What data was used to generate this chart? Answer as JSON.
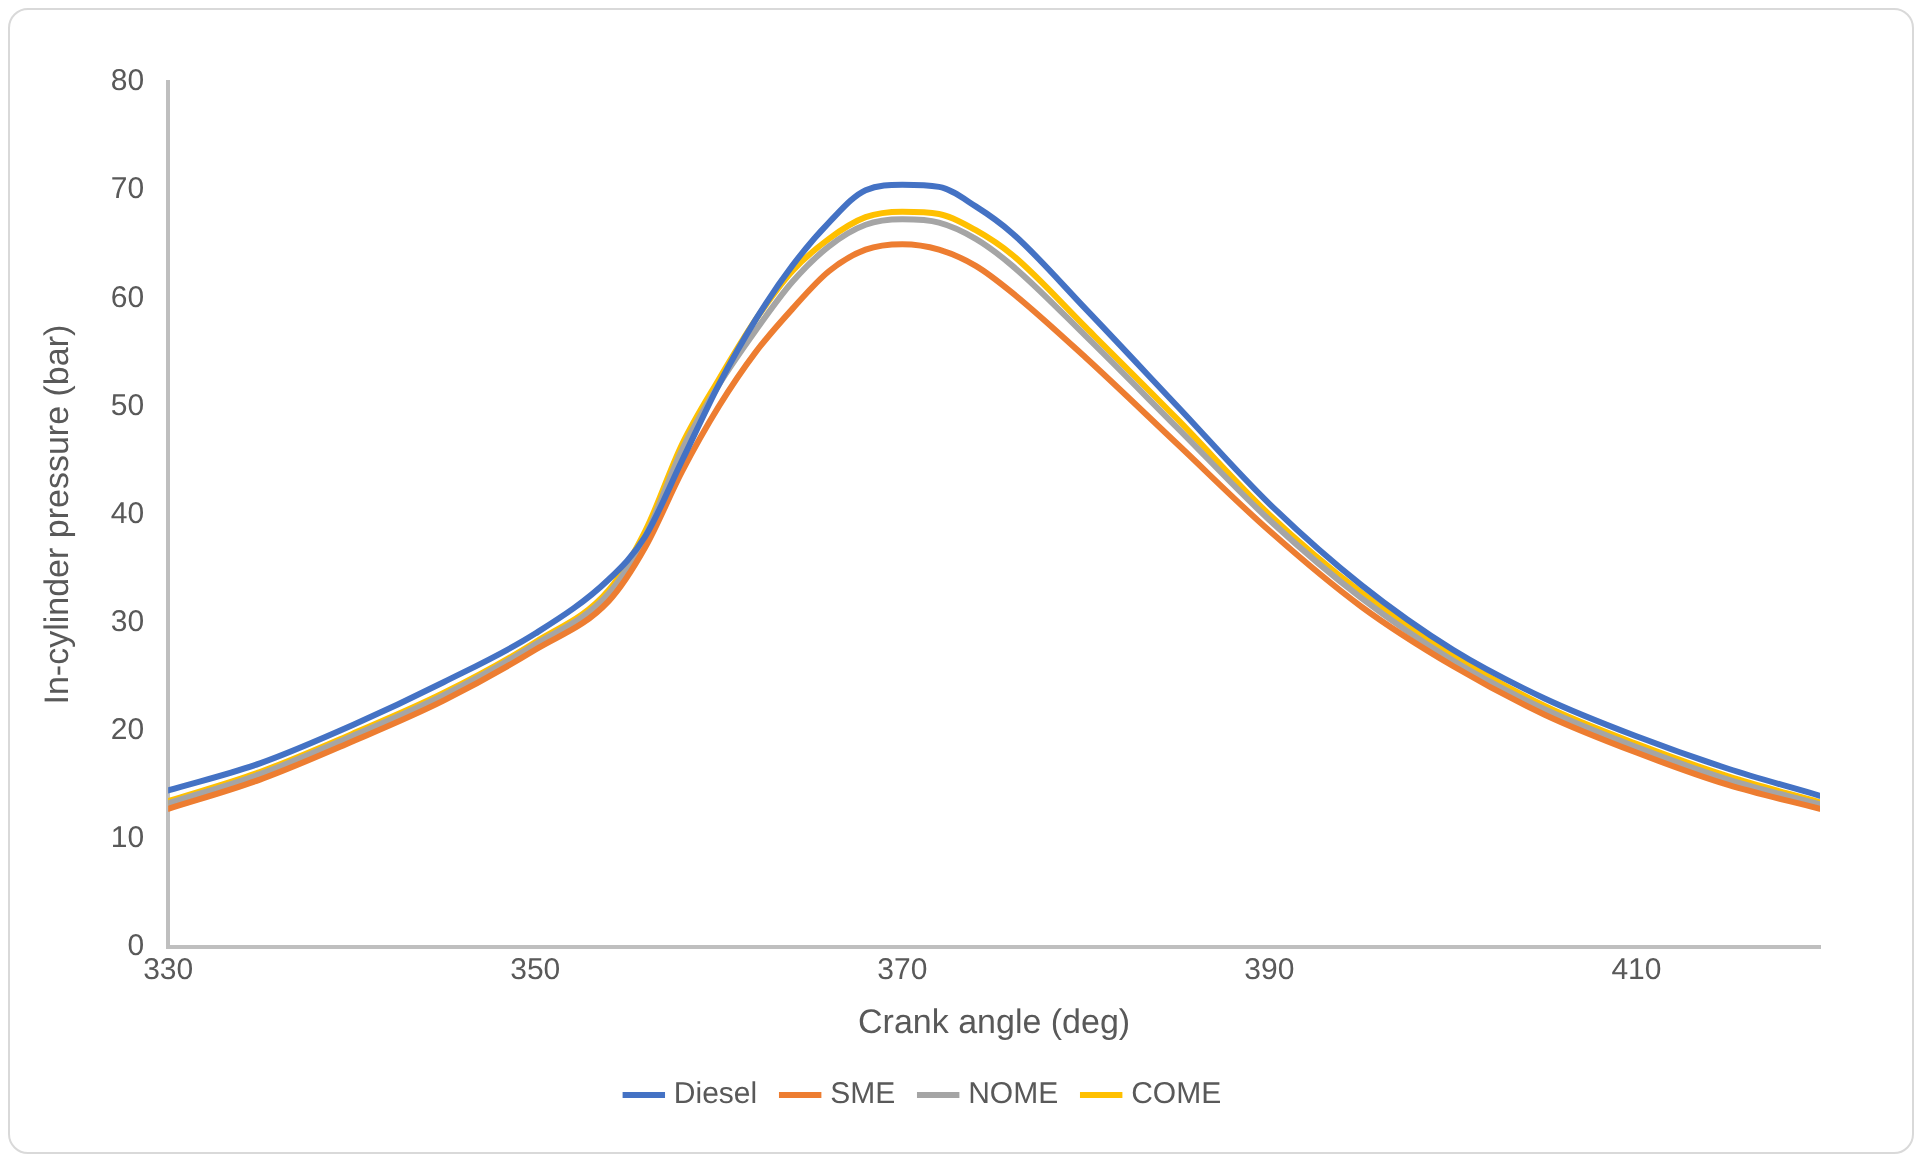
{
  "chart_data": {
    "type": "line",
    "xlabel": "Crank angle (deg)",
    "ylabel": "In-cylinder pressure (bar)",
    "x": [
      330,
      335,
      340,
      345,
      350,
      354,
      356,
      358,
      360,
      362,
      364,
      366,
      368,
      370,
      372,
      374,
      376,
      380,
      385,
      390,
      395,
      400,
      405,
      410,
      415,
      420
    ],
    "series": [
      {
        "name": "Diesel",
        "color": "#4472c4",
        "values": [
          14.5,
          17,
          20.5,
          24.5,
          29,
          34,
          38,
          45,
          52,
          58,
          63,
          67,
          70,
          70.5,
          70.3,
          68.5,
          66,
          59,
          50,
          41,
          33.5,
          27.5,
          23,
          19.5,
          16.5,
          14
        ]
      },
      {
        "name": "SME",
        "color": "#ed7d31",
        "values": [
          12.8,
          15.5,
          19,
          22.8,
          27.5,
          32,
          37,
          44,
          50,
          55,
          59,
          62.5,
          64.5,
          65,
          64.5,
          63,
          60.5,
          54.5,
          46.5,
          38.5,
          31.5,
          26,
          21.5,
          18,
          15,
          12.8
        ]
      },
      {
        "name": "NOME",
        "color": "#a5a5a5",
        "values": [
          13.3,
          16,
          19.5,
          23.3,
          28,
          32.7,
          38,
          46,
          52,
          57,
          61.5,
          64.8,
          66.8,
          67.3,
          67,
          65.5,
          63,
          56.5,
          48,
          39.5,
          32.3,
          26.5,
          22,
          18.5,
          15.5,
          13.2
        ]
      },
      {
        "name": "COME",
        "color": "#ffc000",
        "values": [
          13.5,
          16.2,
          19.7,
          23.5,
          28.2,
          33,
          38.5,
          46.5,
          52.5,
          58,
          62.5,
          65.5,
          67.5,
          68,
          67.8,
          66.3,
          64,
          57.3,
          48.8,
          40,
          32.8,
          27,
          22.3,
          18.8,
          15.8,
          13.4
        ]
      }
    ],
    "xlim": [
      330,
      420
    ],
    "xticks": [
      330,
      350,
      370,
      390,
      410
    ],
    "ylim": [
      0,
      80
    ],
    "yticks": [
      0,
      10,
      20,
      30,
      40,
      50,
      60,
      70,
      80
    ],
    "grid": false,
    "legend": "bottom",
    "marker": "none",
    "line_style": "solid"
  }
}
